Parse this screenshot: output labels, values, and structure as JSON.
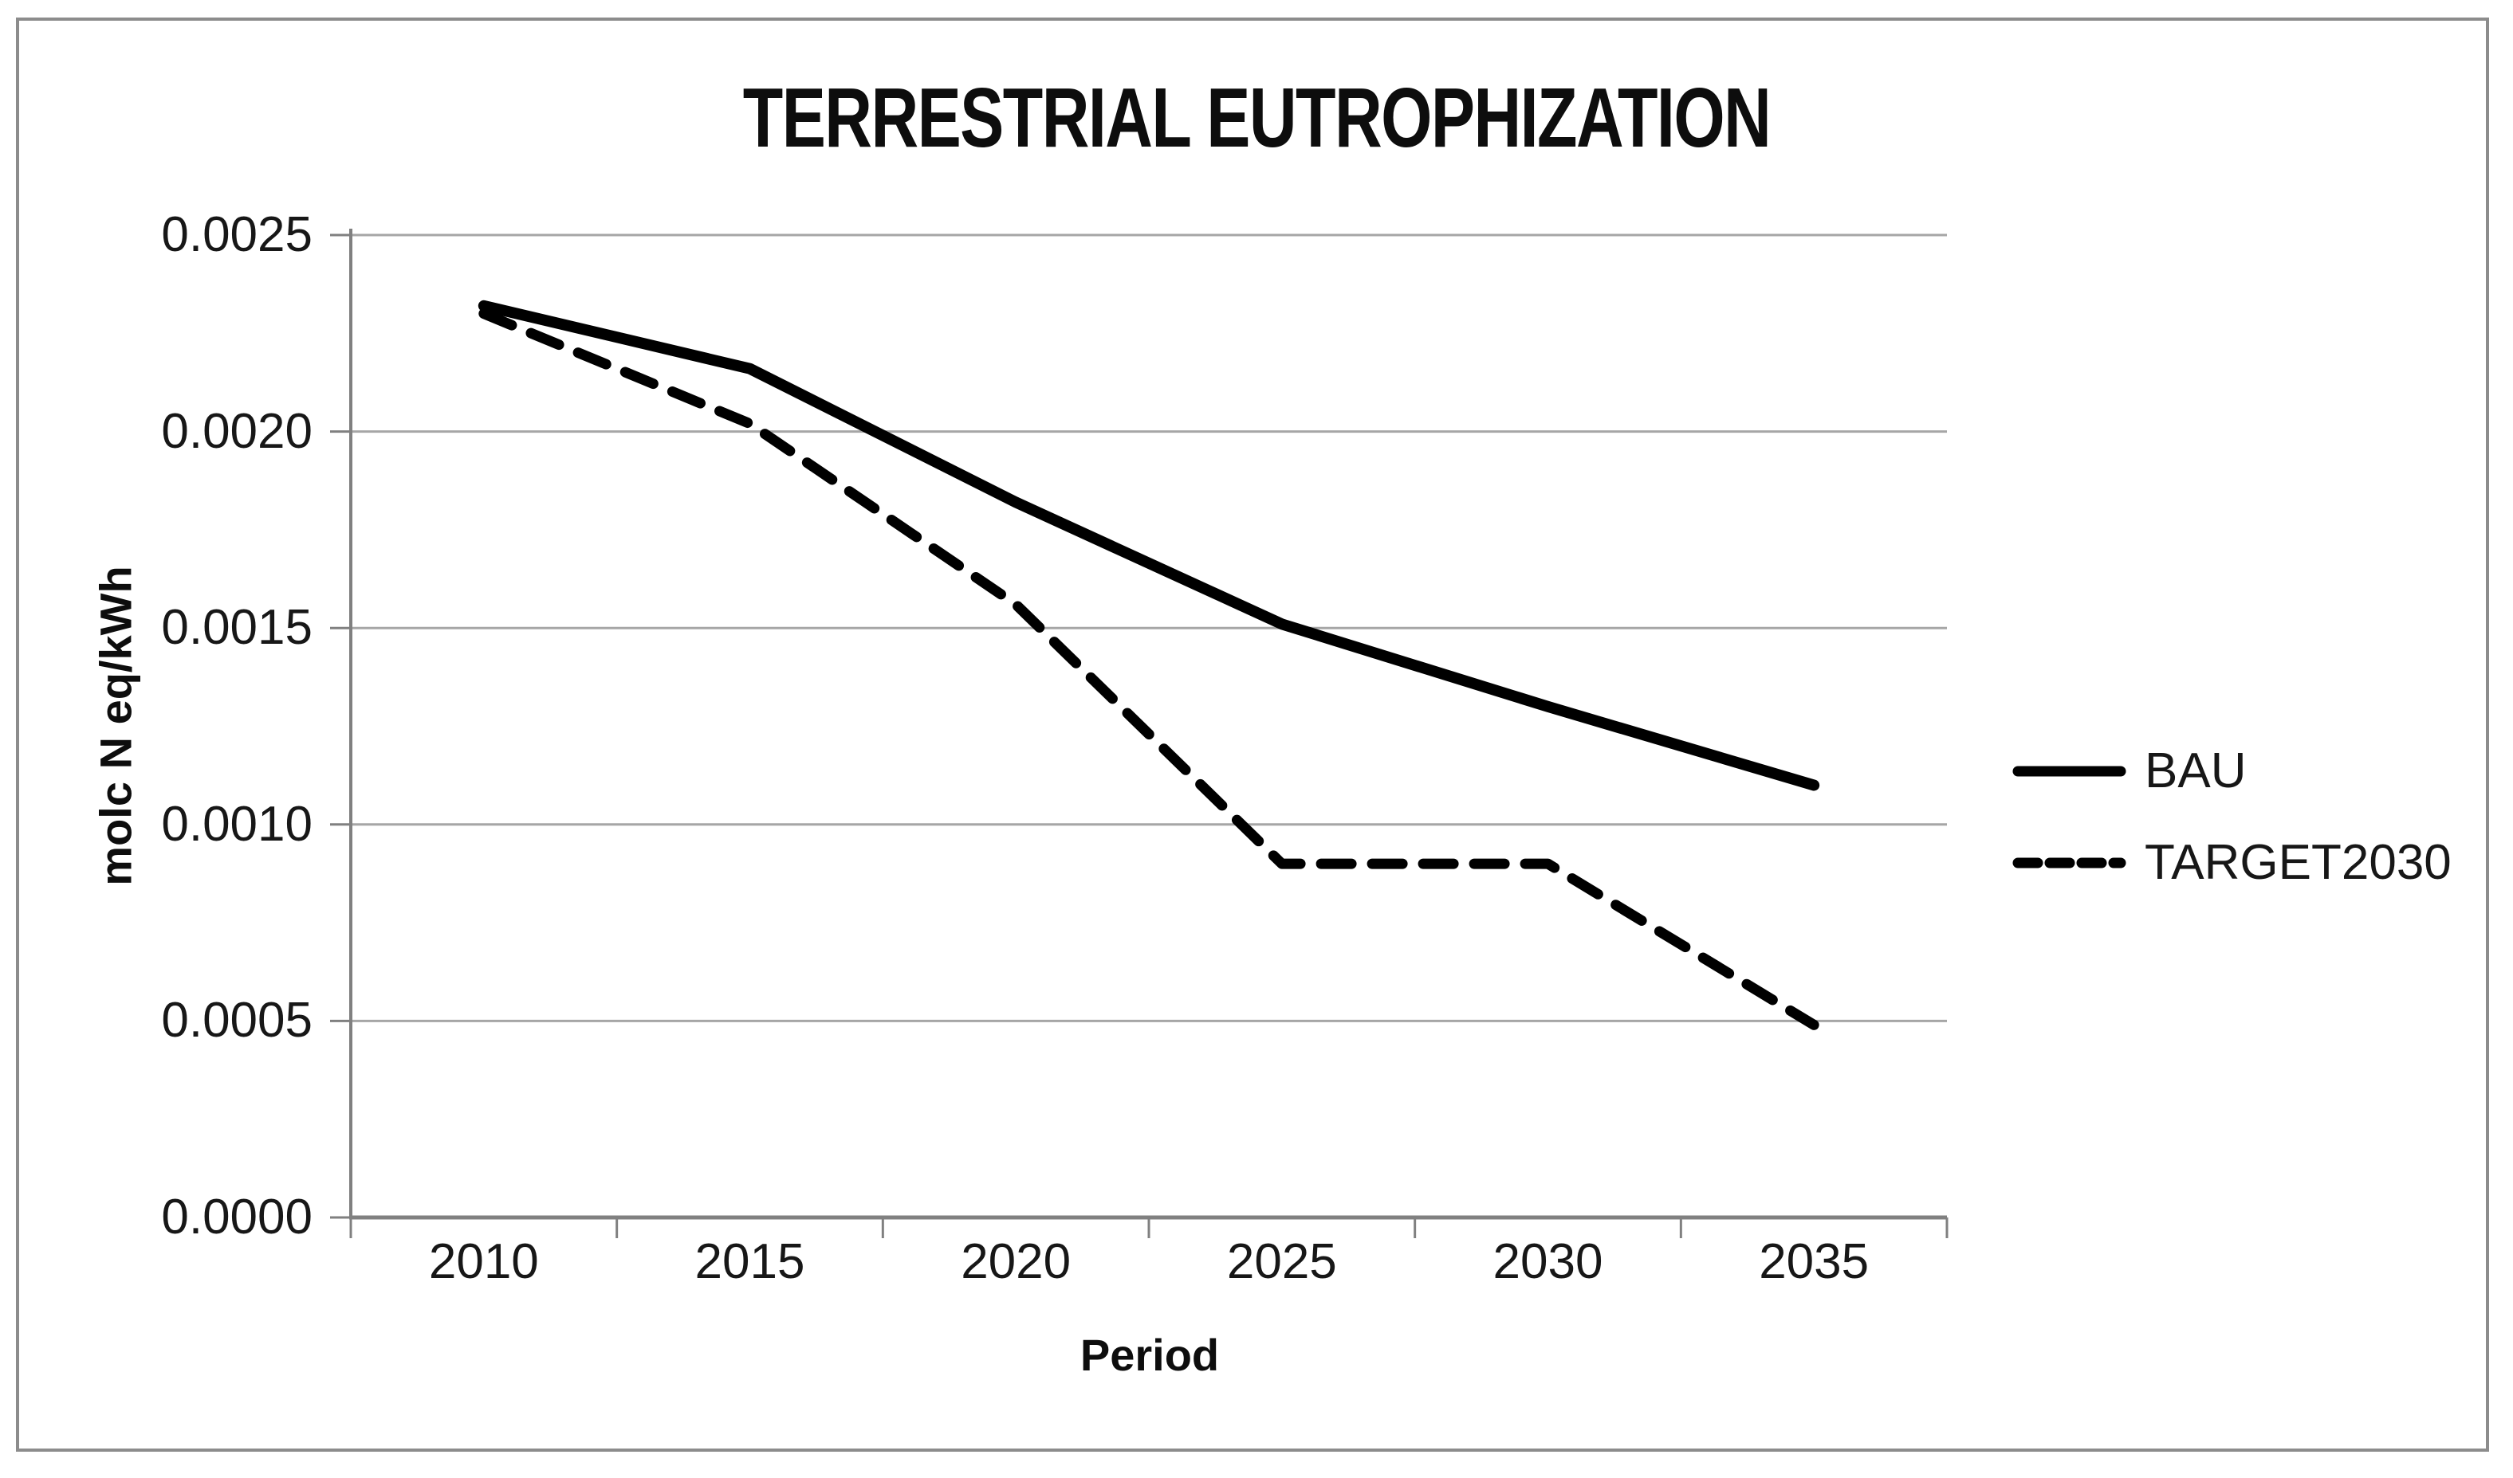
{
  "chart_data": {
    "type": "line",
    "title": "TERRESTRIAL EUTROPHIZATION",
    "xlabel": "Period",
    "ylabel": "molc N eq/kWh",
    "categories": [
      "2010",
      "2015",
      "2020",
      "2025",
      "2030",
      "2035"
    ],
    "series": [
      {
        "name": "BAU",
        "style": "solid",
        "color": "#000000",
        "values": [
          0.00232,
          0.00216,
          0.00182,
          0.00151,
          0.0013,
          0.0011
        ]
      },
      {
        "name": "TARGET2030",
        "style": "dashed",
        "color": "#000000",
        "values": [
          0.0023,
          0.00202,
          0.00156,
          0.0009,
          0.0009,
          0.00049
        ]
      }
    ],
    "ylim": [
      0,
      0.0025
    ],
    "y_tick_step": 0.0005,
    "y_tick_labels": [
      "0.0000",
      "0.0005",
      "0.0010",
      "0.0015",
      "0.0020",
      "0.0025"
    ],
    "grid": "horizontal",
    "legend_position": "right",
    "colors": {
      "line": "#000000",
      "gridline": "#a6a6a6",
      "axis": "#808080",
      "border": "#8c8c8c",
      "text": "#171717"
    }
  }
}
